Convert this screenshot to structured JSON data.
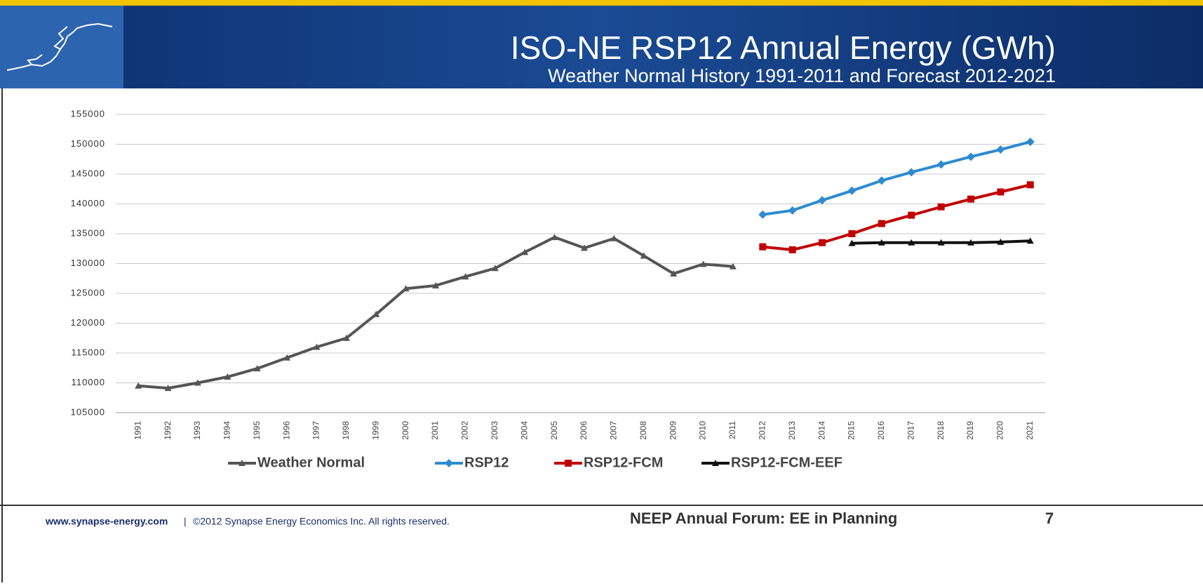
{
  "chart_data": {
    "type": "line",
    "title": "ISO-NE RSP12 Annual Energy (GWh)",
    "subtitle": "Weather Normal History 1991-2011 and Forecast 2012-2021",
    "categories": [
      "1991",
      "1992",
      "1993",
      "1994",
      "1995",
      "1996",
      "1997",
      "1998",
      "1999",
      "2000",
      "2001",
      "2002",
      "2003",
      "2004",
      "2005",
      "2006",
      "2007",
      "2008",
      "2009",
      "2010",
      "2011",
      "2012",
      "2013",
      "2014",
      "2015",
      "2016",
      "2017",
      "2018",
      "2019",
      "2020",
      "2021"
    ],
    "series": [
      {
        "name": "Weather Normal",
        "color": "#555555",
        "marker": "triangle",
        "values": [
          109500,
          109100,
          110000,
          111000,
          112400,
          114200,
          116000,
          117500,
          121500,
          125800,
          126300,
          127800,
          129200,
          131900,
          134400,
          132600,
          134200,
          131300,
          128300,
          129900,
          129500,
          null,
          null,
          null,
          null,
          null,
          null,
          null,
          null,
          null,
          null
        ]
      },
      {
        "name": "RSP12",
        "color": "#2e8bd0",
        "marker": "diamond",
        "values": [
          null,
          null,
          null,
          null,
          null,
          null,
          null,
          null,
          null,
          null,
          null,
          null,
          null,
          null,
          null,
          null,
          null,
          null,
          null,
          null,
          null,
          138200,
          138900,
          140600,
          142200,
          143900,
          145300,
          146600,
          147900,
          149100,
          150400
        ]
      },
      {
        "name": "RSP12-FCM",
        "color": "#c00000",
        "marker": "square",
        "values": [
          null,
          null,
          null,
          null,
          null,
          null,
          null,
          null,
          null,
          null,
          null,
          null,
          null,
          null,
          null,
          null,
          null,
          null,
          null,
          null,
          null,
          132800,
          132300,
          133500,
          135000,
          136700,
          138100,
          139500,
          140800,
          142000,
          143200
        ]
      },
      {
        "name": "RSP12-FCM-EEF",
        "color": "#111111",
        "marker": "triangle",
        "values": [
          null,
          null,
          null,
          null,
          null,
          null,
          null,
          null,
          null,
          null,
          null,
          null,
          null,
          null,
          null,
          null,
          null,
          null,
          null,
          null,
          null,
          null,
          null,
          null,
          133400,
          133500,
          133500,
          133500,
          133500,
          133600,
          133800
        ]
      }
    ],
    "ylim": [
      105000,
      155000
    ],
    "yticks": [
      105000,
      110000,
      115000,
      120000,
      125000,
      130000,
      135000,
      140000,
      145000,
      150000,
      155000
    ],
    "grid": true,
    "legend": "bottom"
  },
  "slide": {
    "footer_url": "www.synapse-energy.com",
    "footer_separator": "|",
    "footer_copyright": "©2012 Synapse Energy Economics Inc. All rights reserved.",
    "footer_event": "NEEP Annual Forum: EE in Planning",
    "page_number": "7"
  }
}
